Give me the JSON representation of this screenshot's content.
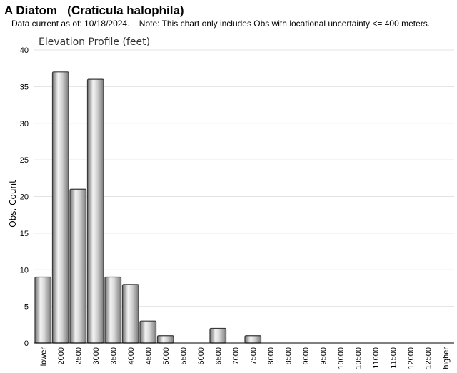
{
  "header": {
    "title": "A Diatom   (Craticula halophila)",
    "note": "Data current as of: 10/18/2024.    Note: This chart only includes Obs with locational uncertainty <= 400 meters."
  },
  "chart_data": {
    "type": "bar",
    "title": "Elevation Profile (feet)",
    "xlabel": "",
    "ylabel": "Obs. Count",
    "ylim": [
      0,
      40
    ],
    "yticks": [
      0,
      5,
      10,
      15,
      20,
      25,
      30,
      35,
      40
    ],
    "grid": true,
    "categories": [
      "lower",
      "2000",
      "2500",
      "3000",
      "3500",
      "4000",
      "4500",
      "5000",
      "5500",
      "6000",
      "6500",
      "7000",
      "7500",
      "8000",
      "8500",
      "9000",
      "9500",
      "10000",
      "10500",
      "11000",
      "11500",
      "12000",
      "12500",
      "higher"
    ],
    "values": [
      9,
      37,
      21,
      36,
      9,
      8,
      3,
      1,
      0,
      0,
      2,
      0,
      1,
      0,
      0,
      0,
      0,
      0,
      0,
      0,
      0,
      0,
      0,
      0
    ],
    "bar_color": "#b0b0b0"
  }
}
